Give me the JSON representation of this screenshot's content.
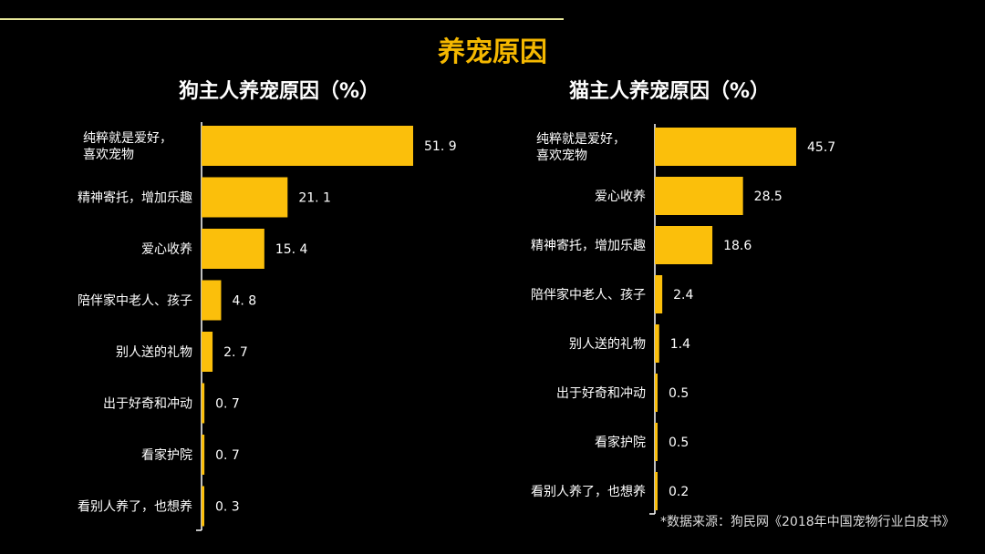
{
  "title": "养宠原因",
  "source": "*数据来源：狗民网《2018年中国宠物行业白皮书》",
  "colors": {
    "bar": "#fbbf0b",
    "text": "#ffffff",
    "title": "#f5b800"
  },
  "chart_data": [
    {
      "type": "bar",
      "orientation": "horizontal",
      "title": "狗主人养宠原因（%）",
      "categories": [
        "纯粹就是爱好，\n喜欢宠物",
        "精神寄托，增加乐趣",
        "爱心收养",
        "陪伴家中老人、孩子",
        "别人送的礼物",
        "出于好奇和冲动",
        "看家护院",
        "看别人养了，也想养"
      ],
      "values": [
        51.9,
        21.1,
        15.4,
        4.8,
        2.7,
        0.7,
        0.7,
        0.3
      ],
      "labels": [
        "51. 9",
        "21. 1",
        "15. 4",
        "4. 8",
        "2. 7",
        "0. 7",
        "0. 7",
        "0. 3"
      ]
    },
    {
      "type": "bar",
      "orientation": "horizontal",
      "title": "猫主人养宠原因（%）",
      "categories": [
        "纯粹就是爱好，\n喜欢宠物",
        "爱心收养",
        "精神寄托，增加乐趣",
        "陪伴家中老人、孩子",
        "别人送的礼物",
        "出于好奇和冲动",
        "看家护院",
        "看别人养了，也想养"
      ],
      "values": [
        45.7,
        28.5,
        18.6,
        2.4,
        1.4,
        0.5,
        0.5,
        0.2
      ],
      "labels": [
        "45.7",
        "28.5",
        "18.6",
        "2.4",
        "1.4",
        "0.5",
        "0.5",
        "0.2"
      ]
    }
  ]
}
